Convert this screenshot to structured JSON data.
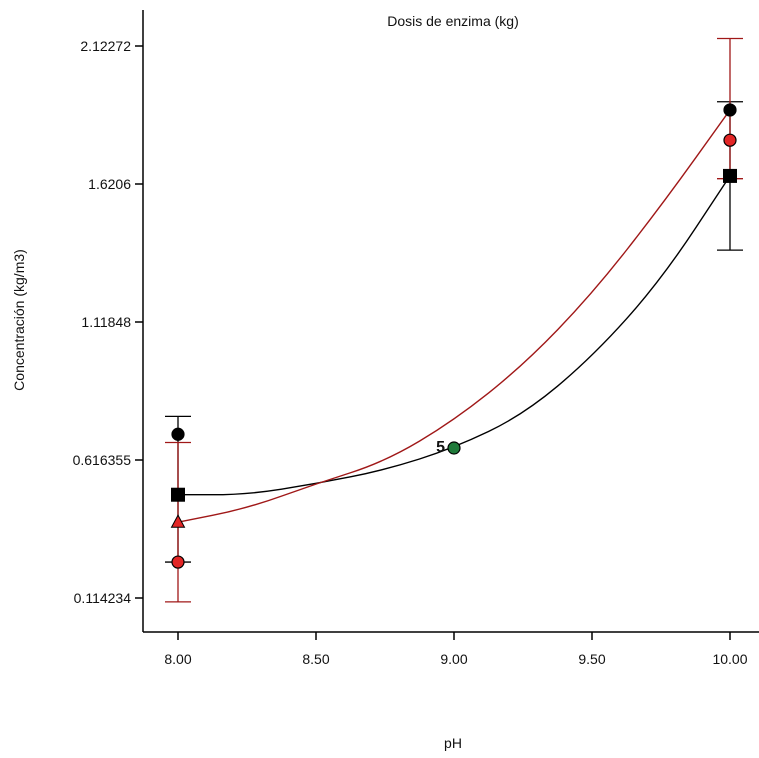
{
  "chart_data": {
    "type": "scatter",
    "title": "Dosis de enzima (kg)",
    "xlabel": "pH",
    "ylabel": "Concentración (kg/m3)",
    "xlim": [
      7.5,
      10.1
    ],
    "ylim": [
      0.0,
      2.22
    ],
    "xticks": [
      8.0,
      8.5,
      9.0,
      9.5,
      10.0
    ],
    "xtick_labels": [
      "8.00",
      "8.50",
      "9.00",
      "9.50",
      "10.00"
    ],
    "yticks": [
      0.114234,
      0.616355,
      1.11848,
      1.6206,
      2.12272
    ],
    "ytick_labels": [
      "0.114234",
      "0.616355",
      "1.11848",
      "1.6206",
      "2.12272"
    ],
    "colors": {
      "black": "#000000",
      "red": "#e32626",
      "darkred": "#a01818",
      "green": "#1f7a3a"
    },
    "series": [
      {
        "marker": "circle",
        "color": "#000000",
        "x": [
          8.0,
          10.0
        ],
        "y": [
          0.71,
          1.89
        ]
      },
      {
        "marker": "circle",
        "color": "#e32626",
        "x": [
          8.0,
          10.0
        ],
        "y": [
          0.245,
          1.78
        ]
      },
      {
        "marker": "square",
        "color": "#000000",
        "x": [
          8.0,
          10.0
        ],
        "y": [
          0.49,
          1.65
        ]
      },
      {
        "marker": "triangle",
        "color": "#e32626",
        "x": [
          8.0
        ],
        "y": [
          0.39
        ]
      },
      {
        "marker": "circle",
        "color": "#1f7a3a",
        "x": [
          9.0
        ],
        "y": [
          0.66
        ]
      }
    ],
    "fit_lines": [
      {
        "color": "#000000",
        "x": [
          8.0,
          8.25,
          8.5,
          8.75,
          9.0,
          9.25,
          9.5,
          9.75,
          10.0
        ],
        "y": [
          0.49,
          0.49,
          0.53,
          0.58,
          0.66,
          0.78,
          0.99,
          1.27,
          1.65
        ]
      },
      {
        "color": "#a01818",
        "x": [
          8.0,
          8.25,
          8.5,
          8.75,
          9.0,
          9.25,
          9.5,
          9.75,
          10.0
        ],
        "y": [
          0.39,
          0.44,
          0.53,
          0.61,
          0.76,
          0.96,
          1.22,
          1.54,
          1.89
        ]
      }
    ],
    "error_bars": [
      {
        "color": "#000000",
        "x": 8.0,
        "low": 0.245,
        "high": 0.775
      },
      {
        "color": "#a01818",
        "x": 8.0,
        "low": 0.1,
        "high": 0.68
      },
      {
        "color": "#000000",
        "x": 10.0,
        "low": 1.38,
        "high": 1.92
      },
      {
        "color": "#a01818",
        "x": 10.0,
        "low": 1.64,
        "high": 2.15
      }
    ],
    "annotations": [
      {
        "text": "5",
        "x": 9.0,
        "y": 0.66
      }
    ],
    "grid": false,
    "legend": "none"
  }
}
